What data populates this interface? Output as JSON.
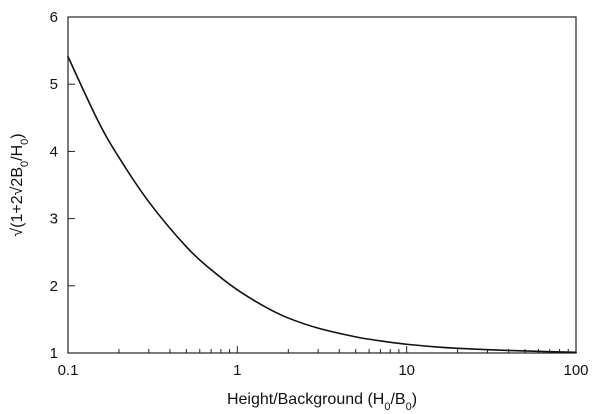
{
  "chart_data": {
    "type": "line",
    "title": "",
    "xlabel": {
      "main": "Height/Background (H",
      "sub1": "0",
      "mid": "/B",
      "sub2": "0",
      "end": ")"
    },
    "ylabel": {
      "main": "√(1+2√2B",
      "sub1": "0",
      "mid": "/H",
      "sub2": "0",
      "end": ")"
    },
    "x_scale": "log",
    "xlim": [
      0.1,
      100
    ],
    "ylim": [
      1,
      6
    ],
    "x_ticks": [
      0.1,
      1,
      10,
      100
    ],
    "x_tick_labels": [
      "0.1",
      "1",
      "10",
      "100"
    ],
    "y_ticks": [
      1,
      2,
      3,
      4,
      5,
      6
    ],
    "y_tick_labels": [
      "1",
      "2",
      "3",
      "4",
      "5",
      "6"
    ],
    "grid": false,
    "legend": "none",
    "line_color": "#111111",
    "series": [
      {
        "x": [
          0.1,
          0.15,
          0.2,
          0.3,
          0.5,
          0.7,
          1,
          1.5,
          2,
          3,
          5,
          7,
          10,
          15,
          20,
          30,
          50,
          70,
          100
        ],
        "y": [
          5.41,
          4.46,
          3.91,
          3.25,
          2.58,
          2.24,
          1.94,
          1.67,
          1.52,
          1.37,
          1.24,
          1.18,
          1.13,
          1.09,
          1.07,
          1.05,
          1.03,
          1.02,
          1.01
        ]
      }
    ]
  }
}
